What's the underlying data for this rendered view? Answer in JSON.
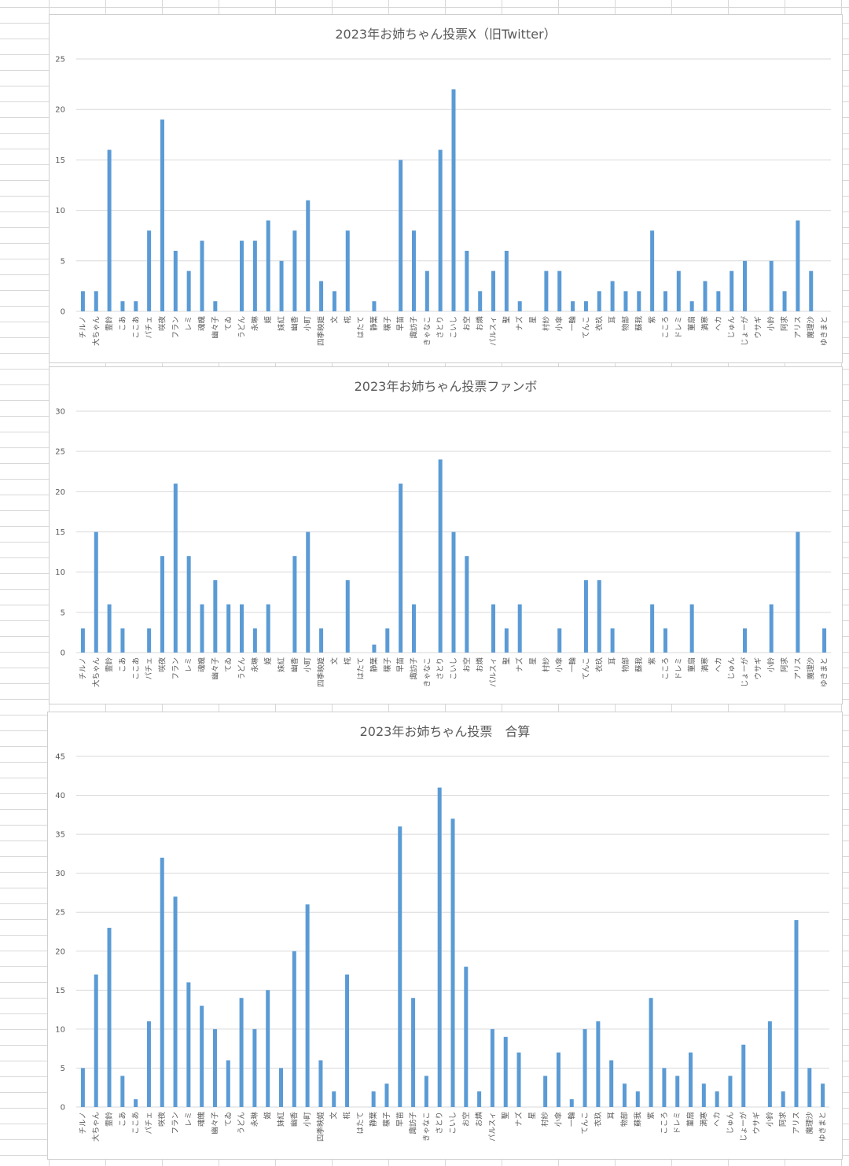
{
  "colors": {
    "bar": "#5b9bd5",
    "grid": "#d9d9d9",
    "text": "#595959"
  },
  "categories": [
    "チルノ",
    "大ちゃん",
    "霊鈴",
    "こあ",
    "ここあ",
    "パチェ",
    "咲夜",
    "フラン",
    "レミ",
    "魂魄",
    "幽々子",
    "てゐ",
    "うどん",
    "永琳",
    "姫",
    "妹紅",
    "幽香",
    "小町",
    "四季映姫",
    "文",
    "椛",
    "はたて",
    "静葉",
    "穣子",
    "早苗",
    "諏訪子",
    "きゃなこ",
    "さとり",
    "こいし",
    "お空",
    "お燐",
    "パルスィ",
    "聖",
    "ナズ",
    "星",
    "村紗",
    "小傘",
    "一輪",
    "てんこ",
    "衣玖",
    "耳",
    "物部",
    "蘇我",
    "紫",
    "こころ",
    "ドレミ",
    "菫扇",
    "満寒",
    "ヘカ",
    "じゅん",
    "じょーが",
    "ウサギ",
    "小鈴",
    "阿求",
    "アリス",
    "魔理沙",
    "ゆきまと"
  ],
  "chart_data": [
    {
      "type": "bar",
      "title": "2023年お姉ちゃん投票X（旧Twitter）",
      "ylim": [
        0,
        25
      ],
      "yticks": [
        0,
        5,
        10,
        15,
        20,
        25
      ],
      "values": [
        2,
        2,
        16,
        1,
        1,
        8,
        19,
        6,
        4,
        7,
        1,
        0,
        7,
        7,
        9,
        5,
        8,
        11,
        3,
        2,
        8,
        0,
        1,
        0,
        15,
        8,
        4,
        16,
        22,
        6,
        2,
        4,
        6,
        1,
        0,
        4,
        4,
        1,
        1,
        2,
        3,
        2,
        2,
        8,
        2,
        4,
        1,
        3,
        2,
        4,
        5,
        0,
        5,
        2,
        9,
        4,
        0
      ],
      "grid": true,
      "legend": "none"
    },
    {
      "type": "bar",
      "title": "2023年お姉ちゃん投票ファンボ",
      "ylim": [
        0,
        30
      ],
      "yticks": [
        0,
        5,
        10,
        15,
        20,
        25,
        30
      ],
      "values": [
        3,
        15,
        6,
        3,
        0,
        3,
        12,
        21,
        12,
        6,
        9,
        6,
        6,
        3,
        6,
        0,
        12,
        15,
        3,
        0,
        9,
        0,
        1,
        3,
        21,
        6,
        0,
        24,
        15,
        12,
        0,
        6,
        3,
        6,
        0,
        0,
        3,
        0,
        9,
        9,
        3,
        0,
        0,
        6,
        3,
        0,
        6,
        0,
        0,
        0,
        3,
        0,
        6,
        0,
        15,
        0,
        3
      ],
      "grid": true,
      "legend": "none"
    },
    {
      "type": "bar",
      "title": "2023年お姉ちゃん投票　合算",
      "ylim": [
        0,
        45
      ],
      "yticks": [
        0,
        5,
        10,
        15,
        20,
        25,
        30,
        35,
        40,
        45
      ],
      "values": [
        5,
        17,
        23,
        4,
        1,
        11,
        32,
        27,
        16,
        13,
        10,
        6,
        14,
        10,
        15,
        5,
        20,
        26,
        6,
        2,
        17,
        0,
        2,
        3,
        36,
        14,
        4,
        41,
        37,
        18,
        2,
        10,
        9,
        7,
        0,
        4,
        7,
        1,
        10,
        11,
        6,
        3,
        2,
        14,
        5,
        4,
        7,
        3,
        2,
        4,
        8,
        0,
        11,
        2,
        24,
        5,
        3
      ],
      "grid": true,
      "legend": "none"
    }
  ]
}
